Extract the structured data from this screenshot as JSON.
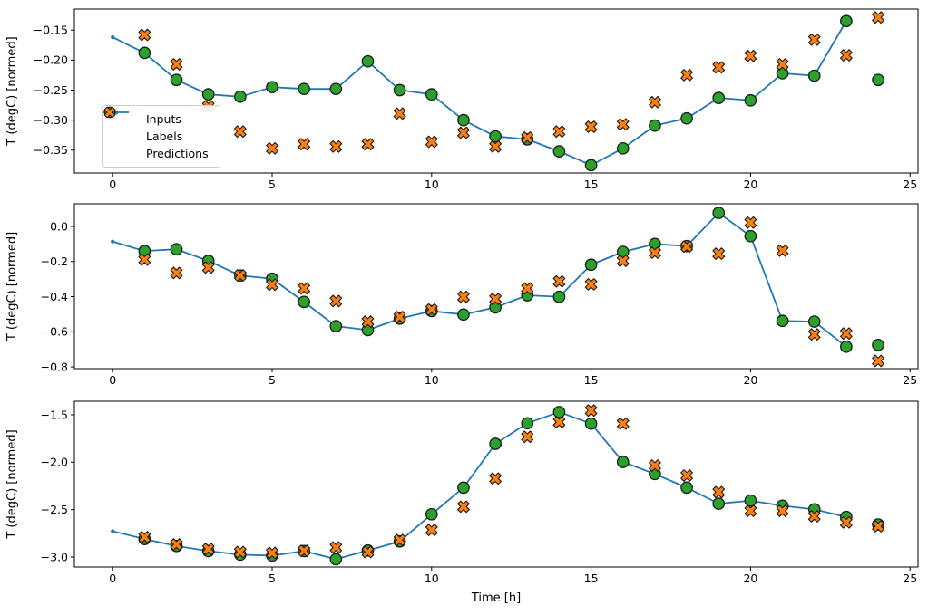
{
  "figure": {
    "background": "#ffffff",
    "xlabel": "Time [h]",
    "ylabel": "T (degC) [normed]",
    "legend": {
      "position": "center left of first subplot",
      "items": [
        {
          "label": "Inputs",
          "marker": "line-with-dot",
          "color": "#1f77b4"
        },
        {
          "label": "Labels",
          "marker": "circle",
          "color": "#2ca02c"
        },
        {
          "label": "Predictions",
          "marker": "thick-x",
          "color": "#ff7f0e"
        }
      ]
    }
  },
  "colors": {
    "inputs": "#1f77b4",
    "labels": "#2ca02c",
    "predictions": "#ff7f0e",
    "marker_edge": "#1a1a1a",
    "spine": "#000000",
    "text": "#000000"
  },
  "chart_data": [
    {
      "type": "line",
      "title": "",
      "xlabel": "",
      "ylabel": "T (degC) [normed]",
      "xlim": [
        -1.2,
        25.25
      ],
      "ylim": [
        -0.388,
        -0.115
      ],
      "grid": false,
      "xticks": [
        0,
        5,
        10,
        15,
        20,
        25
      ],
      "xtick_labels": [
        "0",
        "5",
        "10",
        "15",
        "20",
        "25"
      ],
      "yticks": [
        -0.15,
        -0.2,
        -0.25,
        -0.3,
        -0.35
      ],
      "ytick_labels": [
        "−0.15",
        "−0.20",
        "−0.25",
        "−0.30",
        "−0.35"
      ],
      "series": [
        {
          "name": "Inputs",
          "style": "line-with-dots",
          "color": "#1f77b4",
          "x": [
            0,
            1,
            2,
            3,
            4,
            5,
            6,
            7,
            8,
            9,
            10,
            11,
            12,
            13,
            14,
            15,
            16,
            17,
            18,
            19,
            20,
            21,
            22,
            23
          ],
          "y": [
            -0.162,
            -0.188,
            -0.233,
            -0.257,
            -0.261,
            -0.245,
            -0.248,
            -0.248,
            -0.202,
            -0.25,
            -0.257,
            -0.3,
            -0.327,
            -0.332,
            -0.352,
            -0.375,
            -0.347,
            -0.309,
            -0.297,
            -0.263,
            -0.267,
            -0.222,
            -0.226,
            -0.135
          ]
        },
        {
          "name": "Labels",
          "style": "scatter-circle",
          "color": "#2ca02c",
          "edge_color": "#1a1a1a",
          "x": [
            1,
            2,
            3,
            4,
            5,
            6,
            7,
            8,
            9,
            10,
            11,
            12,
            13,
            14,
            15,
            16,
            17,
            18,
            19,
            20,
            21,
            22,
            23,
            24
          ],
          "y": [
            -0.188,
            -0.233,
            -0.257,
            -0.261,
            -0.245,
            -0.248,
            -0.248,
            -0.202,
            -0.25,
            -0.257,
            -0.3,
            -0.327,
            -0.332,
            -0.352,
            -0.375,
            -0.347,
            -0.309,
            -0.297,
            -0.263,
            -0.267,
            -0.222,
            -0.226,
            -0.135,
            -0.233
          ]
        },
        {
          "name": "Predictions",
          "style": "scatter-thick-x",
          "color": "#ff7f0e",
          "edge_color": "#1a1a1a",
          "x": [
            1,
            2,
            3,
            4,
            5,
            6,
            7,
            8,
            9,
            10,
            11,
            12,
            13,
            14,
            15,
            16,
            17,
            18,
            19,
            20,
            21,
            22,
            23,
            24
          ],
          "y": [
            -0.158,
            -0.207,
            -0.277,
            -0.319,
            -0.347,
            -0.34,
            -0.344,
            -0.34,
            -0.289,
            -0.336,
            -0.321,
            -0.344,
            -0.329,
            -0.319,
            -0.311,
            -0.307,
            -0.27,
            -0.225,
            -0.212,
            -0.193,
            -0.207,
            -0.166,
            -0.192,
            -0.129
          ]
        }
      ]
    },
    {
      "type": "line",
      "title": "",
      "xlabel": "",
      "ylabel": "T (degC) [normed]",
      "xlim": [
        -1.2,
        25.25
      ],
      "ylim": [
        -0.81,
        0.129
      ],
      "grid": false,
      "xticks": [
        0,
        5,
        10,
        15,
        20,
        25
      ],
      "xtick_labels": [
        "0",
        "5",
        "10",
        "15",
        "20",
        "25"
      ],
      "yticks": [
        0.0,
        -0.2,
        -0.4,
        -0.6,
        -0.8
      ],
      "ytick_labels": [
        "0.0",
        "−0.2",
        "−0.4",
        "−0.6",
        "−0.8"
      ],
      "series": [
        {
          "name": "Inputs",
          "style": "line-with-dots",
          "color": "#1f77b4",
          "x": [
            0,
            1,
            2,
            3,
            4,
            5,
            6,
            7,
            8,
            9,
            10,
            11,
            12,
            13,
            14,
            15,
            16,
            17,
            18,
            19,
            20,
            21,
            22,
            23
          ],
          "y": [
            -0.086,
            -0.14,
            -0.13,
            -0.196,
            -0.28,
            -0.298,
            -0.43,
            -0.568,
            -0.59,
            -0.525,
            -0.482,
            -0.502,
            -0.461,
            -0.392,
            -0.401,
            -0.218,
            -0.145,
            -0.1,
            -0.112,
            0.077,
            -0.055,
            -0.538,
            -0.542,
            -0.685
          ]
        },
        {
          "name": "Labels",
          "style": "scatter-circle",
          "color": "#2ca02c",
          "edge_color": "#1a1a1a",
          "x": [
            1,
            2,
            3,
            4,
            5,
            6,
            7,
            8,
            9,
            10,
            11,
            12,
            13,
            14,
            15,
            16,
            17,
            18,
            19,
            20,
            21,
            22,
            23,
            24
          ],
          "y": [
            -0.14,
            -0.13,
            -0.196,
            -0.28,
            -0.298,
            -0.43,
            -0.568,
            -0.59,
            -0.525,
            -0.482,
            -0.502,
            -0.461,
            -0.392,
            -0.401,
            -0.218,
            -0.145,
            -0.1,
            -0.112,
            0.077,
            -0.055,
            -0.538,
            -0.542,
            -0.685,
            -0.675
          ]
        },
        {
          "name": "Predictions",
          "style": "scatter-thick-x",
          "color": "#ff7f0e",
          "edge_color": "#1a1a1a",
          "x": [
            1,
            2,
            3,
            4,
            5,
            6,
            7,
            8,
            9,
            10,
            11,
            12,
            13,
            14,
            15,
            16,
            17,
            18,
            19,
            20,
            21,
            22,
            23,
            24
          ],
          "y": [
            -0.189,
            -0.265,
            -0.234,
            -0.279,
            -0.332,
            -0.353,
            -0.425,
            -0.542,
            -0.516,
            -0.473,
            -0.401,
            -0.413,
            -0.353,
            -0.313,
            -0.33,
            -0.196,
            -0.15,
            -0.115,
            -0.155,
            0.022,
            -0.138,
            -0.615,
            -0.61,
            -0.766
          ]
        }
      ]
    },
    {
      "type": "line",
      "title": "",
      "xlabel": "Time [h]",
      "ylabel": "T (degC) [normed]",
      "xlim": [
        -1.2,
        25.25
      ],
      "ylim": [
        -3.105,
        -1.357
      ],
      "grid": false,
      "xticks": [
        0,
        5,
        10,
        15,
        20,
        25
      ],
      "xtick_labels": [
        "0",
        "5",
        "10",
        "15",
        "20",
        "25"
      ],
      "yticks": [
        -1.5,
        -2.0,
        -2.5,
        -3.0
      ],
      "ytick_labels": [
        "−1.5",
        "−2.0",
        "−2.5",
        "−3.0"
      ],
      "series": [
        {
          "name": "Inputs",
          "style": "line-with-dots",
          "color": "#1f77b4",
          "x": [
            0,
            1,
            2,
            3,
            4,
            5,
            6,
            7,
            8,
            9,
            10,
            11,
            12,
            13,
            14,
            15,
            16,
            17,
            18,
            19,
            20,
            21,
            22,
            23
          ],
          "y": [
            -2.727,
            -2.81,
            -2.883,
            -2.937,
            -2.975,
            -2.985,
            -2.937,
            -3.023,
            -2.931,
            -2.835,
            -2.549,
            -2.268,
            -1.806,
            -1.589,
            -1.471,
            -1.593,
            -1.997,
            -2.124,
            -2.268,
            -2.437,
            -2.405,
            -2.459,
            -2.497,
            -2.577
          ]
        },
        {
          "name": "Labels",
          "style": "scatter-circle",
          "color": "#2ca02c",
          "edge_color": "#1a1a1a",
          "x": [
            1,
            2,
            3,
            4,
            5,
            6,
            7,
            8,
            9,
            10,
            11,
            12,
            13,
            14,
            15,
            16,
            17,
            18,
            19,
            20,
            21,
            22,
            23,
            24
          ],
          "y": [
            -2.81,
            -2.883,
            -2.937,
            -2.975,
            -2.985,
            -2.937,
            -3.023,
            -2.931,
            -2.835,
            -2.549,
            -2.268,
            -1.806,
            -1.589,
            -1.471,
            -1.593,
            -1.997,
            -2.124,
            -2.268,
            -2.437,
            -2.405,
            -2.459,
            -2.497,
            -2.577,
            -2.657
          ]
        },
        {
          "name": "Predictions",
          "style": "scatter-thick-x",
          "color": "#ff7f0e",
          "edge_color": "#1a1a1a",
          "x": [
            1,
            2,
            3,
            4,
            5,
            6,
            7,
            8,
            9,
            10,
            11,
            12,
            13,
            14,
            15,
            16,
            17,
            18,
            19,
            20,
            21,
            22,
            23,
            24
          ],
          "y": [
            -2.79,
            -2.867,
            -2.915,
            -2.947,
            -2.956,
            -2.934,
            -2.899,
            -2.947,
            -2.82,
            -2.714,
            -2.469,
            -2.172,
            -1.732,
            -1.577,
            -1.455,
            -1.593,
            -2.035,
            -2.14,
            -2.315,
            -2.513,
            -2.513,
            -2.571,
            -2.635,
            -2.676
          ]
        }
      ]
    }
  ]
}
